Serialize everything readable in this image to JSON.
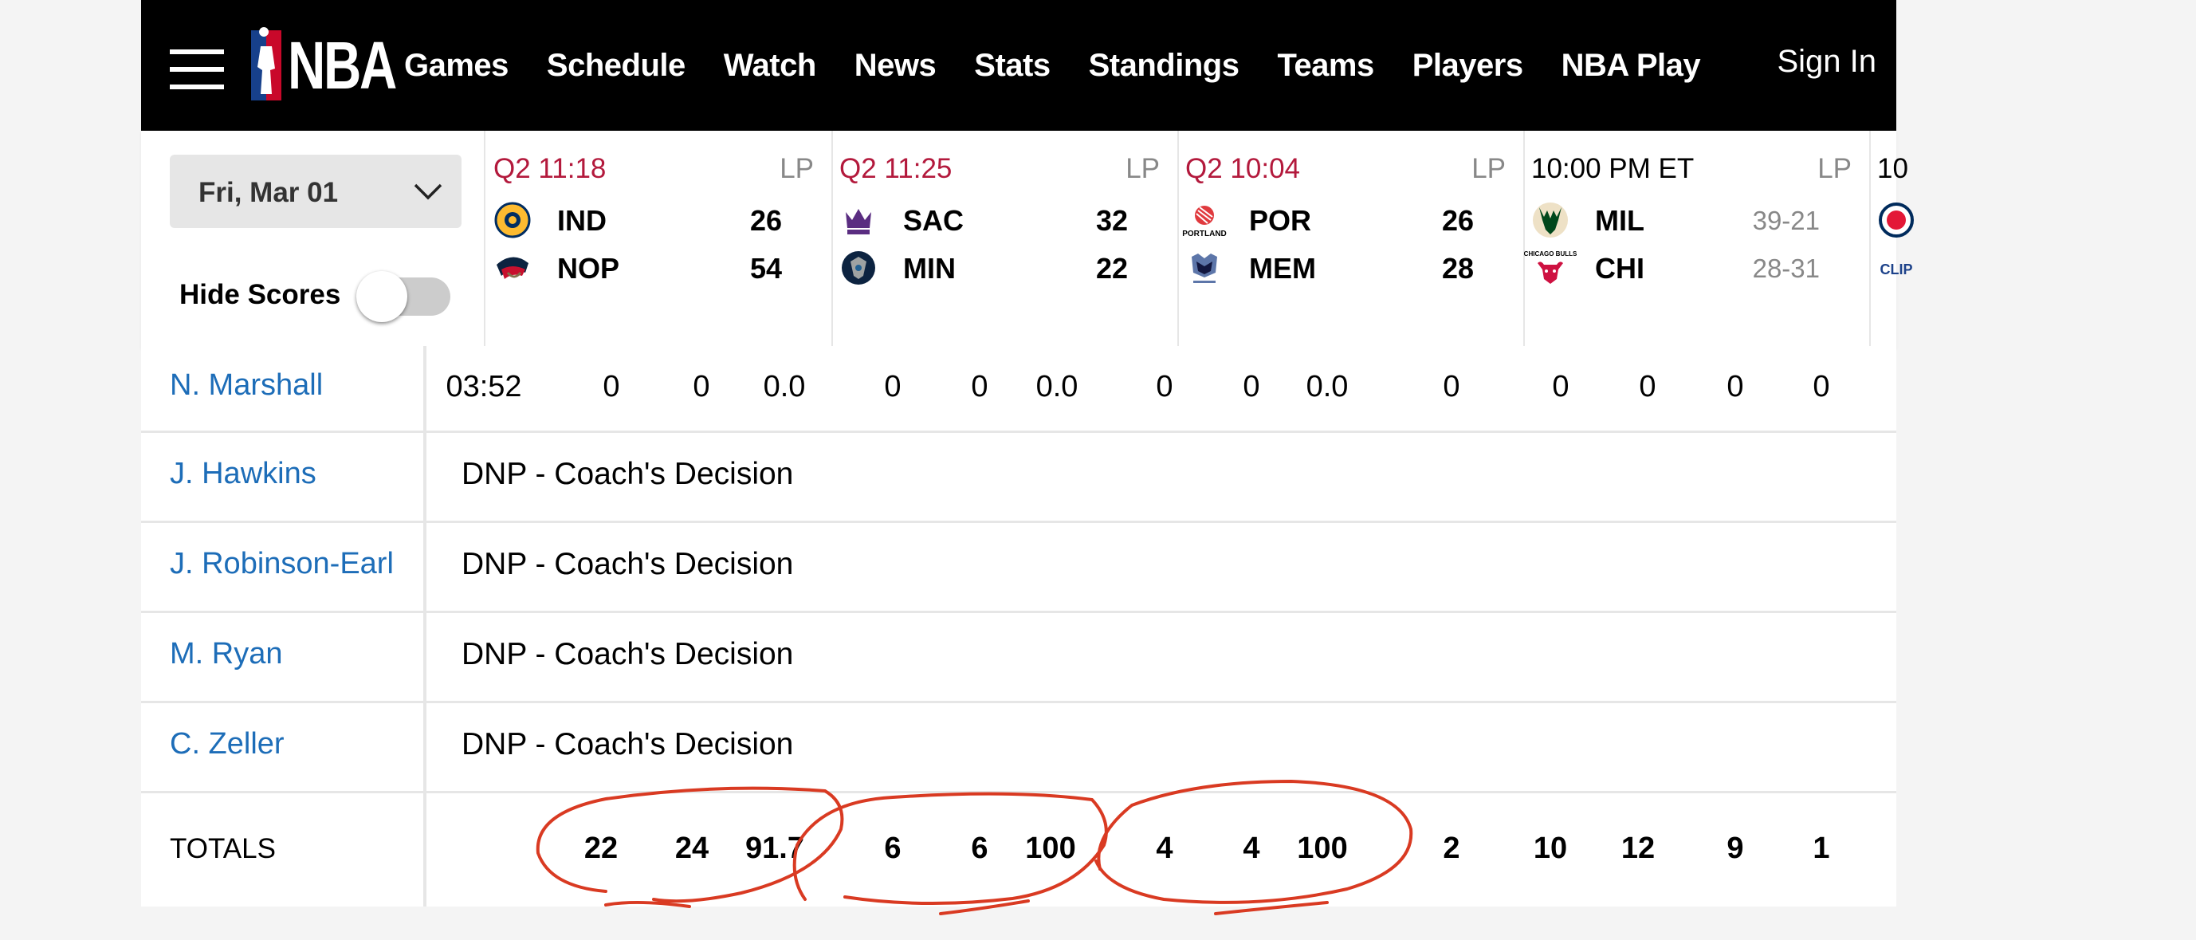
{
  "nav": {
    "logo_text": "NBA",
    "links": [
      "Games",
      "Schedule",
      "Watch",
      "News",
      "Stats",
      "Standings",
      "Teams",
      "Players",
      "NBA Play"
    ],
    "sign_in": "Sign In"
  },
  "date_selector": {
    "value": "Fri, Mar 01"
  },
  "hide_scores": {
    "label": "Hide Scores",
    "on": false
  },
  "games": [
    {
      "status": "Q2 11:18",
      "tag": "LP",
      "away": {
        "abbr": "IND",
        "score": "26"
      },
      "home": {
        "abbr": "NOP",
        "score": "54"
      }
    },
    {
      "status": "Q2 11:25",
      "tag": "LP",
      "away": {
        "abbr": "SAC",
        "score": "32"
      },
      "home": {
        "abbr": "MIN",
        "score": "22"
      }
    },
    {
      "status": "Q2 10:04",
      "tag": "LP",
      "away": {
        "abbr": "POR",
        "score": "26"
      },
      "home": {
        "abbr": "MEM",
        "score": "28"
      }
    },
    {
      "status": "10:00 PM ET",
      "tag": "LP",
      "away": {
        "abbr": "MIL",
        "record": "39-21"
      },
      "home": {
        "abbr": "CHI",
        "record": "28-31"
      }
    },
    {
      "status": "10"
    }
  ],
  "team_logo_text": {
    "portland": "PORTLAND",
    "chicago": "CHICAGO BULLS",
    "clippers": "CLIP"
  },
  "players": [
    {
      "name": "N. Marshall",
      "stats": [
        "03:52",
        "0",
        "0",
        "0.0",
        "0",
        "0",
        "0.0",
        "0",
        "0",
        "0.0",
        "0",
        "0",
        "0",
        "0",
        "0"
      ]
    },
    {
      "name": "J. Hawkins",
      "dnp": "DNP - Coach's Decision"
    },
    {
      "name": "J. Robinson-Earl",
      "dnp": "DNP - Coach's Decision"
    },
    {
      "name": "M. Ryan",
      "dnp": "DNP - Coach's Decision"
    },
    {
      "name": "C. Zeller",
      "dnp": "DNP - Coach's Decision"
    }
  ],
  "totals": {
    "label": "TOTALS",
    "stats": [
      "22",
      "24",
      "91.7",
      "6",
      "6",
      "100",
      "4",
      "4",
      "100",
      "2",
      "10",
      "12",
      "9",
      "1"
    ]
  },
  "colors": {
    "live_status": "#b3193c",
    "player_link": "#1d6db8",
    "annotation": "#d93a22"
  }
}
